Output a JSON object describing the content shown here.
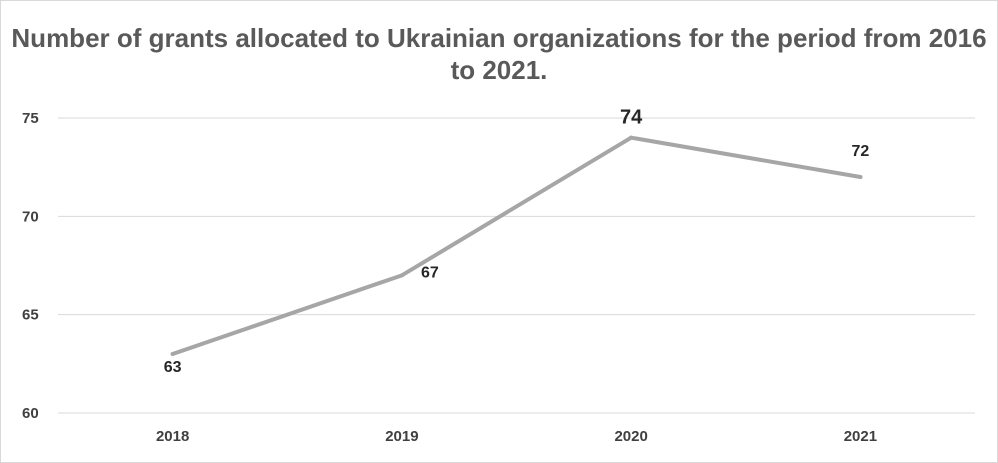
{
  "chart_data": {
    "type": "line",
    "title": "Number of grants allocated to Ukrainian organizations for the period from 2016 to 2021.",
    "categories": [
      "2018",
      "2019",
      "2020",
      "2021"
    ],
    "series": [
      {
        "values": [
          63,
          67,
          74,
          72
        ]
      }
    ],
    "data_labels": [
      "63",
      "67",
      "74",
      "72"
    ],
    "ylim": [
      60,
      75
    ],
    "yticks": [
      60,
      65,
      70,
      75
    ],
    "ytick_labels": [
      "60",
      "65",
      "70",
      "75"
    ],
    "grid": true,
    "legend": "none",
    "line_color": "#a6a6a6",
    "grid_color": "#d9d9d9"
  }
}
